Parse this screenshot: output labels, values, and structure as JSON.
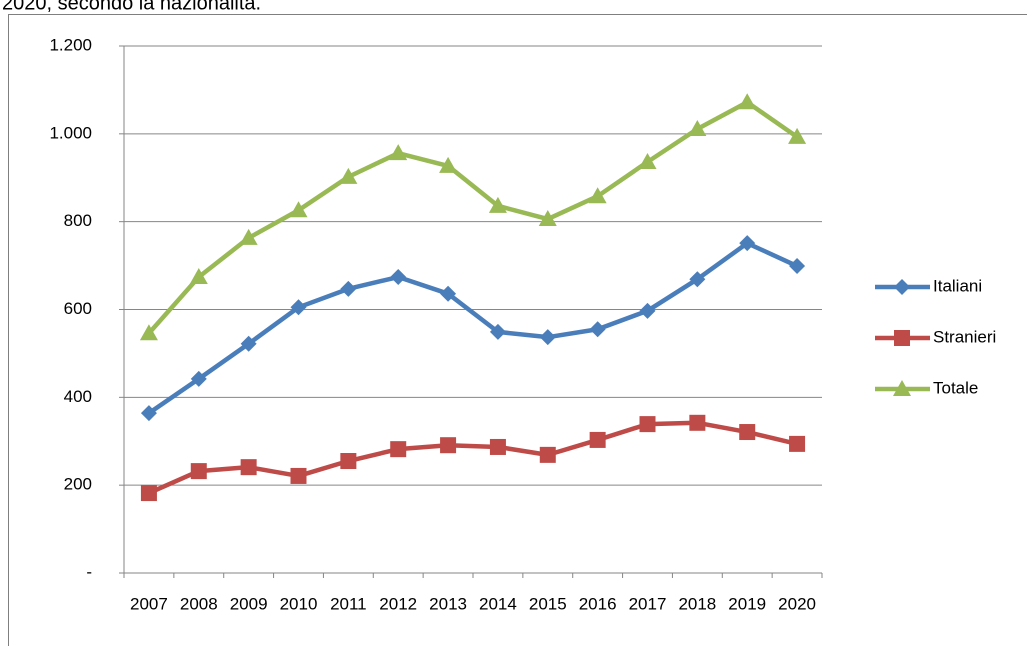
{
  "chart_data": {
    "type": "line",
    "title": "2020, secondo la nazionalità.",
    "categories": [
      "2007",
      "2008",
      "2009",
      "2010",
      "2011",
      "2012",
      "2013",
      "2014",
      "2015",
      "2016",
      "2017",
      "2018",
      "2019",
      "2020"
    ],
    "series": [
      {
        "name": "Italiani",
        "color": "#4a7ebb",
        "marker": "diamond",
        "values": [
          364,
          442,
          522,
          605,
          647,
          674,
          636,
          549,
          537,
          555,
          597,
          669,
          751,
          699
        ]
      },
      {
        "name": "Stranieri",
        "color": "#be4b48",
        "marker": "square",
        "values": [
          182,
          232,
          241,
          221,
          255,
          282,
          291,
          287,
          269,
          303,
          339,
          342,
          321,
          294
        ]
      },
      {
        "name": "Totale",
        "color": "#98b954",
        "marker": "triangle",
        "values": [
          546,
          674,
          763,
          826,
          902,
          956,
          927,
          836,
          806,
          858,
          936,
          1011,
          1072,
          993
        ]
      }
    ],
    "ylim": [
      0,
      1200
    ],
    "yticks": [
      {
        "value": 0,
        "label": "-"
      },
      200,
      400,
      600,
      800,
      {
        "value": 1000,
        "label": "1.000"
      },
      {
        "value": 1200,
        "label": "1.200"
      }
    ],
    "grid": true,
    "legend": "right"
  }
}
